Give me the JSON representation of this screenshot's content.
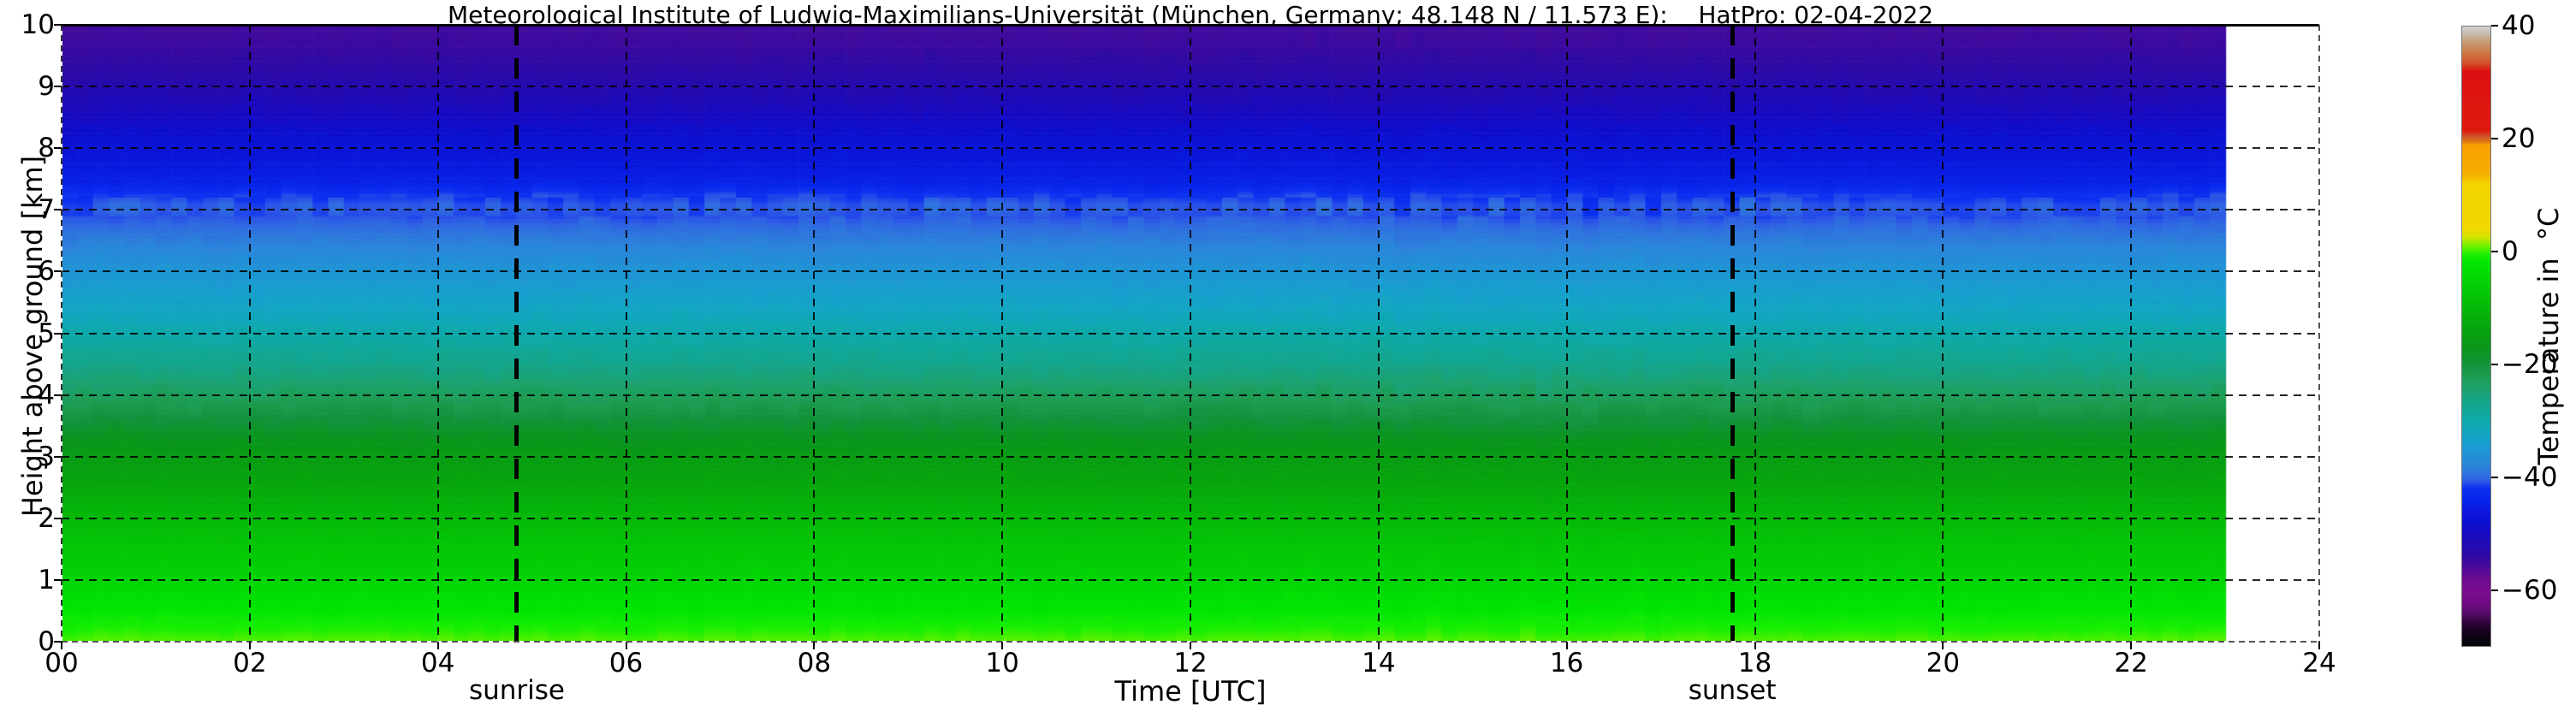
{
  "figure": {
    "background": "#ffffff"
  },
  "chart_data": {
    "type": "heatmap",
    "title": "Meteorological Institute of Ludwig-Maximilians-Universität (München, Germany; 48.148 N / 11.573 E):    HatPro: 02-04-2022",
    "xlabel": "Time [UTC]",
    "ylabel": "Height above ground [km]",
    "xlim": [
      0,
      24
    ],
    "ylim": [
      0,
      10
    ],
    "grid": true,
    "data_end_hour": 23.0,
    "time_step_hours": 0.1667,
    "x_ticks": [
      {
        "value": 0,
        "label": "00"
      },
      {
        "value": 2,
        "label": "02"
      },
      {
        "value": 4,
        "label": "04"
      },
      {
        "value": 6,
        "label": "06"
      },
      {
        "value": 8,
        "label": "08"
      },
      {
        "value": 10,
        "label": "10"
      },
      {
        "value": 12,
        "label": "12"
      },
      {
        "value": 14,
        "label": "14"
      },
      {
        "value": 16,
        "label": "16"
      },
      {
        "value": 18,
        "label": "18"
      },
      {
        "value": 20,
        "label": "20"
      },
      {
        "value": 22,
        "label": "22"
      },
      {
        "value": 24,
        "label": "24"
      }
    ],
    "y_ticks": [
      {
        "value": 0,
        "label": "0"
      },
      {
        "value": 1,
        "label": "1"
      },
      {
        "value": 2,
        "label": "2"
      },
      {
        "value": 3,
        "label": "3"
      },
      {
        "value": 4,
        "label": "4"
      },
      {
        "value": 5,
        "label": "5"
      },
      {
        "value": 6,
        "label": "6"
      },
      {
        "value": 7,
        "label": "7"
      },
      {
        "value": 8,
        "label": "8"
      },
      {
        "value": 9,
        "label": "9"
      },
      {
        "value": 10,
        "label": "10"
      }
    ],
    "annotations": [
      {
        "label": "sunrise",
        "hour": 4.84
      },
      {
        "label": "sunset",
        "hour": 17.76
      }
    ],
    "colorbar": {
      "title": "Temperature in  °C",
      "min": -70,
      "max": 40,
      "ticks": [
        {
          "value": 40,
          "label": "40"
        },
        {
          "value": 20,
          "label": "20"
        },
        {
          "value": 0,
          "label": "0"
        },
        {
          "value": -20,
          "label": "−20"
        },
        {
          "value": -40,
          "label": "−40"
        },
        {
          "value": -60,
          "label": "−60"
        }
      ],
      "stops": [
        [
          -70,
          "#060606"
        ],
        [
          -68.5,
          "#0e0213"
        ],
        [
          -67,
          "#1d0326"
        ],
        [
          -66,
          "#2e0438"
        ],
        [
          -64,
          "#5a0a6e"
        ],
        [
          -62,
          "#740b88"
        ],
        [
          -60,
          "#7b0c8d"
        ],
        [
          -58,
          "#6b0b90"
        ],
        [
          -56,
          "#490a9a"
        ],
        [
          -54,
          "#2f0aa4"
        ],
        [
          -52,
          "#220ab2"
        ],
        [
          -50,
          "#160ac2"
        ],
        [
          -48,
          "#0d10d0"
        ],
        [
          -46,
          "#0a18dc"
        ],
        [
          -44,
          "#0824ea"
        ],
        [
          -42,
          "#0c31f0"
        ],
        [
          -41,
          "#2a52e8"
        ],
        [
          -40,
          "#2f6be0"
        ],
        [
          -38,
          "#2b84da"
        ],
        [
          -36,
          "#2092d5"
        ],
        [
          -34,
          "#189fce"
        ],
        [
          -32,
          "#12a6c0"
        ],
        [
          -30,
          "#0da9ab"
        ],
        [
          -28,
          "#12a795"
        ],
        [
          -26,
          "#17a482"
        ],
        [
          -24,
          "#1da169"
        ],
        [
          -22,
          "#1d9c51"
        ],
        [
          -20,
          "#12933c"
        ],
        [
          -18,
          "#0b9423"
        ],
        [
          -16,
          "#089a15"
        ],
        [
          -14,
          "#07a30e"
        ],
        [
          -12,
          "#06ad0b"
        ],
        [
          -10,
          "#05b908"
        ],
        [
          -8,
          "#04c406"
        ],
        [
          -6,
          "#03cf05"
        ],
        [
          -4,
          "#02da04"
        ],
        [
          -2,
          "#01e603"
        ],
        [
          -0.5,
          "#1aef02"
        ],
        [
          0.5,
          "#55f100"
        ],
        [
          1.5,
          "#8cee00"
        ],
        [
          2.5,
          "#cfe400"
        ],
        [
          4,
          "#f0d800"
        ],
        [
          12,
          "#f2d400"
        ],
        [
          14,
          "#f6ac00"
        ],
        [
          19,
          "#f89f00"
        ],
        [
          19.5,
          "#e37a14"
        ],
        [
          20.5,
          "#cc5428"
        ],
        [
          21.5,
          "#de1a10"
        ],
        [
          32,
          "#dc0f10"
        ],
        [
          33.5,
          "#d4502a"
        ],
        [
          35.5,
          "#cb7c48"
        ],
        [
          37.5,
          "#c4a17c"
        ],
        [
          39,
          "#c9c0ba"
        ],
        [
          40,
          "#d6d2d1"
        ]
      ]
    },
    "temperature_profile": {
      "heights_km": [
        0,
        0.3,
        0.6,
        1.0,
        1.5,
        2.0,
        2.5,
        3.0,
        3.3,
        3.6,
        4.0,
        4.5,
        5.0,
        5.5,
        6.0,
        6.5,
        6.9,
        7.05,
        7.25,
        7.45,
        7.8,
        8.2,
        8.6,
        9.0,
        9.4,
        9.7,
        10.0
      ],
      "temps_c": [
        0.5,
        -1.0,
        -2.5,
        -5.0,
        -7.5,
        -10.0,
        -13.0,
        -15.5,
        -17.5,
        -20.0,
        -23.0,
        -27.0,
        -30.0,
        -33.0,
        -35.5,
        -38.5,
        -41.0,
        -40.5,
        -42.0,
        -44.5,
        -46.0,
        -48.0,
        -50.5,
        -52.5,
        -54.0,
        -55.0,
        -55.5
      ]
    }
  }
}
